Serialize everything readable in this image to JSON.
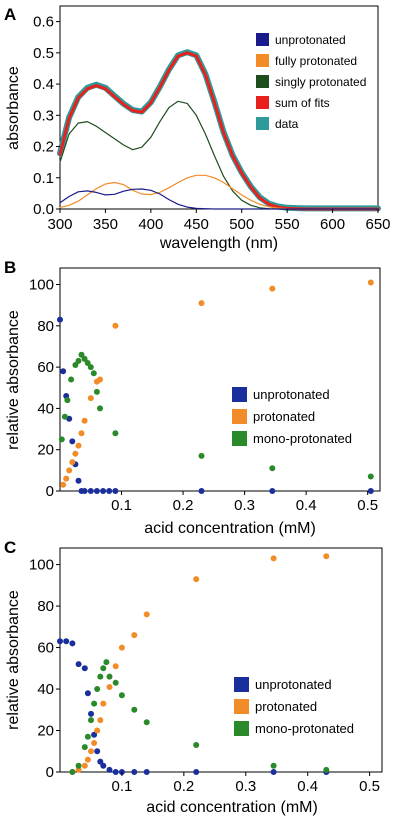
{
  "chart_data": [
    {
      "panel": "A",
      "type": "line",
      "xlabel": "wavelength (nm)",
      "ylabel": "absorbance",
      "xlim": [
        300,
        650
      ],
      "ylim": [
        0,
        0.65
      ],
      "xticks": [
        300,
        350,
        400,
        450,
        500,
        550,
        600,
        650
      ],
      "yticks": [
        0.0,
        0.1,
        0.2,
        0.3,
        0.4,
        0.5,
        0.6
      ],
      "grid": false,
      "legend": "top-right",
      "x": [
        300,
        310,
        320,
        330,
        340,
        350,
        360,
        370,
        380,
        390,
        400,
        410,
        420,
        430,
        440,
        450,
        460,
        470,
        480,
        490,
        500,
        510,
        520,
        530,
        540,
        550,
        560,
        570,
        580,
        590,
        600,
        610,
        620,
        630,
        640,
        650
      ],
      "series": [
        {
          "name": "unprotonated",
          "color": "#1a1a8c",
          "values": [
            0.02,
            0.04,
            0.055,
            0.058,
            0.053,
            0.045,
            0.047,
            0.057,
            0.063,
            0.064,
            0.06,
            0.048,
            0.03,
            0.015,
            0.006,
            0.002,
            0.001,
            0,
            0,
            0,
            0,
            0,
            0,
            0,
            0,
            0,
            0,
            0,
            0,
            0,
            0,
            0,
            0,
            0,
            0,
            0
          ]
        },
        {
          "name": "fully protonated",
          "color": "#f28c28",
          "values": [
            0.005,
            0.012,
            0.025,
            0.045,
            0.065,
            0.08,
            0.085,
            0.078,
            0.06,
            0.048,
            0.046,
            0.053,
            0.068,
            0.085,
            0.1,
            0.108,
            0.108,
            0.1,
            0.085,
            0.065,
            0.045,
            0.028,
            0.015,
            0.007,
            0.003,
            0.001,
            0,
            0,
            0,
            0,
            0,
            0,
            0,
            0,
            0,
            0
          ]
        },
        {
          "name": "singly protonated",
          "color": "#1e4d1e",
          "values": [
            0.15,
            0.24,
            0.275,
            0.28,
            0.265,
            0.245,
            0.225,
            0.205,
            0.19,
            0.198,
            0.23,
            0.28,
            0.325,
            0.345,
            0.338,
            0.3,
            0.24,
            0.17,
            0.105,
            0.058,
            0.028,
            0.012,
            0.004,
            0.001,
            0,
            0,
            0,
            0,
            0,
            0,
            0,
            0,
            0,
            0,
            0,
            0
          ]
        },
        {
          "name": "sum of fits",
          "color": "#e8201e",
          "values": [
            0.175,
            0.29,
            0.355,
            0.385,
            0.395,
            0.385,
            0.36,
            0.335,
            0.315,
            0.31,
            0.34,
            0.39,
            0.445,
            0.49,
            0.5,
            0.49,
            0.43,
            0.34,
            0.245,
            0.17,
            0.115,
            0.07,
            0.035,
            0.015,
            0.006,
            0.002,
            0.001,
            0,
            0,
            0,
            0,
            0,
            0,
            0,
            0,
            0
          ]
        },
        {
          "name": "data",
          "color": "#2f9a9a",
          "values": [
            0.178,
            0.293,
            0.358,
            0.388,
            0.398,
            0.388,
            0.362,
            0.337,
            0.317,
            0.312,
            0.342,
            0.392,
            0.447,
            0.492,
            0.502,
            0.492,
            0.432,
            0.342,
            0.247,
            0.172,
            0.117,
            0.072,
            0.037,
            0.017,
            0.008,
            0.004,
            0.003,
            0.002,
            0.002,
            0.002,
            0.002,
            0.002,
            0.002,
            0.002,
            0.002,
            0.002
          ]
        }
      ]
    },
    {
      "panel": "B",
      "type": "scatter",
      "xlabel": "acid concentration (mM)",
      "ylabel": "relative absorbance",
      "xlim": [
        0,
        0.52
      ],
      "ylim": [
        0,
        108
      ],
      "xticks": [
        0.1,
        0.2,
        0.3,
        0.4,
        0.5
      ],
      "yticks": [
        0,
        20,
        40,
        60,
        80,
        100
      ],
      "grid": false,
      "legend": "center-right",
      "series": [
        {
          "name": "unprotonated",
          "color": "#1a2e9c",
          "x": [
            0.0,
            0.005,
            0.01,
            0.015,
            0.02,
            0.025,
            0.03,
            0.035,
            0.04,
            0.05,
            0.06,
            0.07,
            0.08,
            0.09,
            0.23,
            0.345,
            0.505
          ],
          "y": [
            83,
            58,
            46,
            35,
            24,
            13,
            5,
            0,
            0,
            0,
            0,
            0,
            0,
            0,
            0,
            0,
            0
          ]
        },
        {
          "name": "protonated",
          "color": "#f28c28",
          "x": [
            0.005,
            0.01,
            0.015,
            0.02,
            0.025,
            0.03,
            0.035,
            0.04,
            0.05,
            0.06,
            0.065,
            0.09,
            0.23,
            0.345,
            0.505
          ],
          "y": [
            3,
            6,
            10,
            14,
            18,
            22,
            28,
            34,
            45,
            53,
            54,
            80,
            91,
            98,
            101
          ]
        },
        {
          "name": "mono-protonated",
          "color": "#2a8a2a",
          "x": [
            0.003,
            0.008,
            0.012,
            0.018,
            0.025,
            0.03,
            0.035,
            0.04,
            0.045,
            0.05,
            0.055,
            0.06,
            0.065,
            0.09,
            0.23,
            0.345,
            0.505
          ],
          "y": [
            25,
            36,
            44,
            54,
            61,
            63,
            66,
            64,
            62,
            60,
            57,
            48,
            40,
            28,
            17,
            11,
            7
          ]
        }
      ]
    },
    {
      "panel": "C",
      "type": "scatter",
      "xlabel": "acid concentration (mM)",
      "ylabel": "relative absorbance",
      "xlim": [
        0,
        0.52
      ],
      "ylim": [
        0,
        108
      ],
      "xticks": [
        0.1,
        0.2,
        0.3,
        0.4,
        0.5
      ],
      "yticks": [
        0,
        20,
        40,
        60,
        80,
        100
      ],
      "grid": false,
      "legend": "center-right",
      "series": [
        {
          "name": "unprotonated",
          "color": "#1a2e9c",
          "x": [
            0.0,
            0.01,
            0.02,
            0.03,
            0.04,
            0.045,
            0.05,
            0.055,
            0.06,
            0.065,
            0.07,
            0.08,
            0.09,
            0.1,
            0.12,
            0.14,
            0.22,
            0.345,
            0.43
          ],
          "y": [
            63,
            63,
            62,
            52,
            50,
            38,
            28,
            18,
            10,
            5,
            3,
            1,
            0,
            0,
            0,
            0,
            0,
            0,
            0
          ]
        },
        {
          "name": "protonated",
          "color": "#f28c28",
          "x": [
            0.02,
            0.03,
            0.04,
            0.045,
            0.05,
            0.055,
            0.06,
            0.065,
            0.07,
            0.08,
            0.09,
            0.1,
            0.12,
            0.14,
            0.22,
            0.345,
            0.43
          ],
          "y": [
            0,
            1,
            3,
            6,
            10,
            14,
            20,
            25,
            33,
            41,
            51,
            60,
            66,
            76,
            93,
            103,
            104
          ]
        },
        {
          "name": "mono-protonated",
          "color": "#2a8a2a",
          "x": [
            0.02,
            0.03,
            0.04,
            0.045,
            0.05,
            0.055,
            0.06,
            0.065,
            0.07,
            0.075,
            0.08,
            0.09,
            0.1,
            0.12,
            0.14,
            0.22,
            0.345,
            0.43
          ],
          "y": [
            0,
            3,
            12,
            17,
            25,
            33,
            40,
            46,
            50,
            53,
            46,
            43,
            37,
            30,
            24,
            13,
            3,
            1
          ]
        }
      ]
    }
  ]
}
